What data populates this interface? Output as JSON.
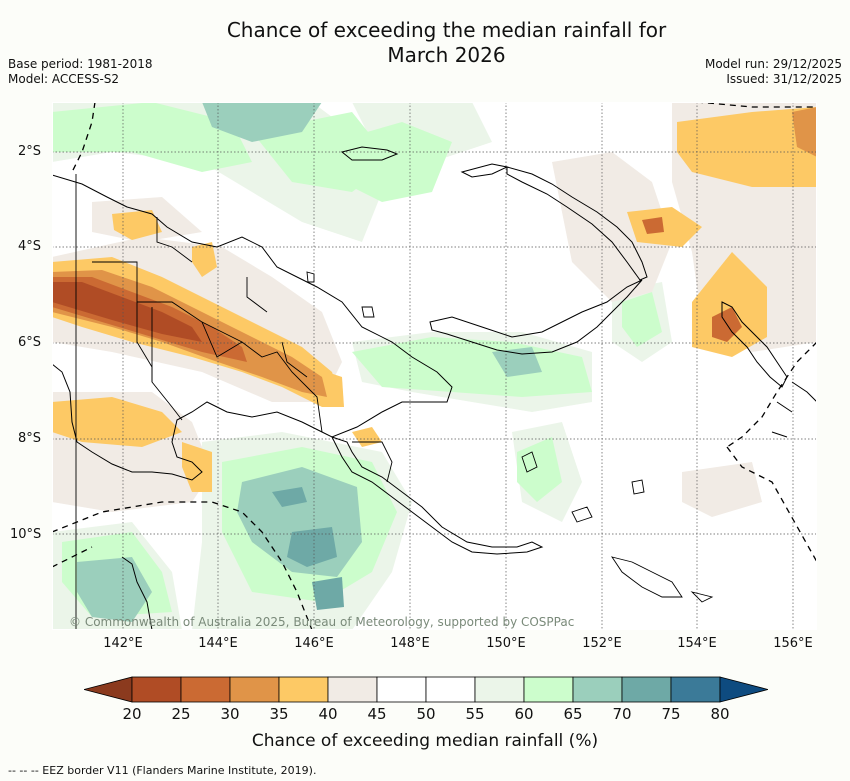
{
  "header": {
    "title_line1": "Chance of exceeding the median rainfall for",
    "title_line2": "March 2026",
    "base_period": "Base period: 1981-2018",
    "model": "Model: ACCESS-S2",
    "model_run": "Model run: 29/12/2025",
    "issued": "Issued: 31/12/2025"
  },
  "map": {
    "lat_labels": [
      "2°S",
      "4°S",
      "6°S",
      "8°S",
      "10°S"
    ],
    "lon_labels": [
      "142°E",
      "144°E",
      "146°E",
      "148°E",
      "150°E",
      "152°E",
      "154°E",
      "156°E"
    ],
    "copyright": "© Commonwealth of Australia 2025, Bureau of Meteorology, supported by COSPPac"
  },
  "colorbar": {
    "ticks": [
      "20",
      "25",
      "30",
      "35",
      "40",
      "45",
      "50",
      "55",
      "60",
      "65",
      "70",
      "75",
      "80"
    ],
    "colors": [
      "#8b3a1e",
      "#b04c25",
      "#cb6a33",
      "#e09448",
      "#fdc965",
      "#f1ebe5",
      "#ffffff",
      "#ffffff",
      "#ebf5e9",
      "#ccfdcc",
      "#9bcfbc",
      "#6ea9a6",
      "#3b7a98",
      "#0e4b80"
    ],
    "title": "Chance of exceeding median rainfall (%)"
  },
  "footnote": "-- -- -- EEZ border V11 (Flanders Marine Institute, 2019)."
}
